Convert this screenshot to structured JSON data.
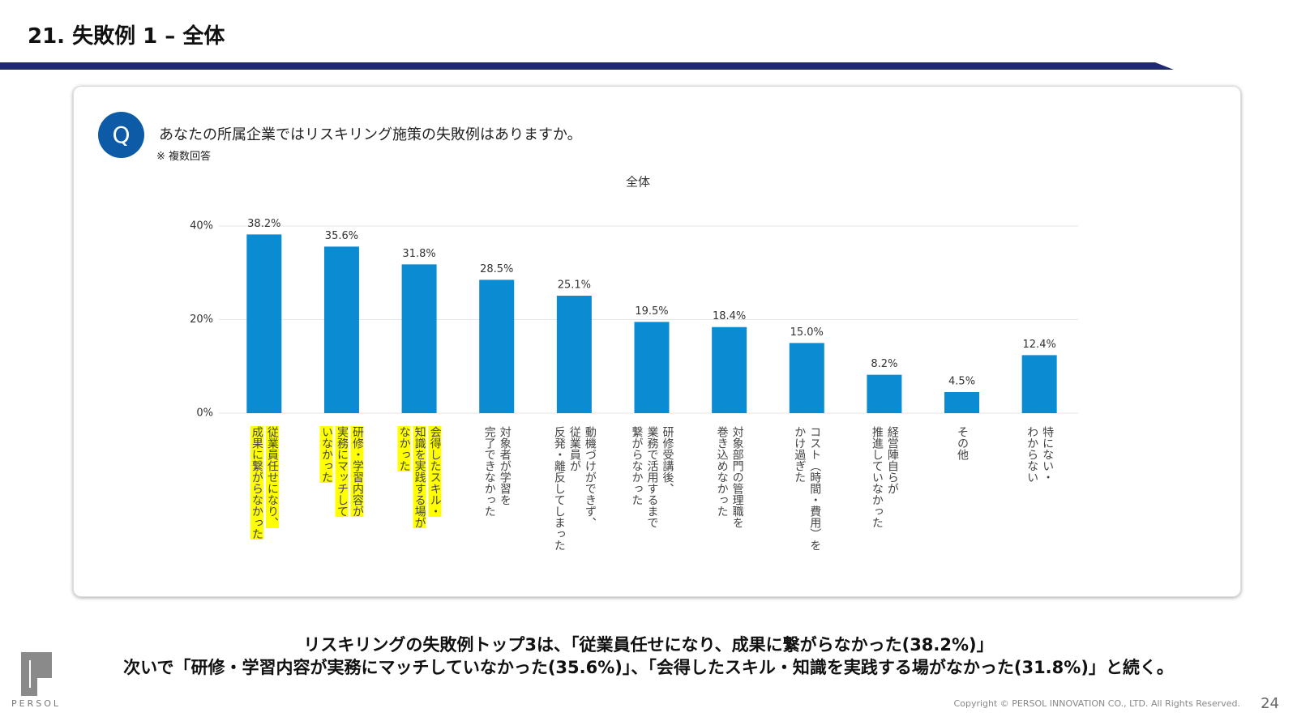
{
  "header": {
    "title": "21. 失敗例 1 – 全体"
  },
  "question": {
    "badge": "Q",
    "text": "あなたの所属企業ではリスキリング施策の失敗例はありますか。",
    "note": "※ 複数回答"
  },
  "chart_data": {
    "type": "bar",
    "title": "全体",
    "categories": [
      "従業員任せになり、\n成果に繋がらなかった",
      "研修・学習内容が\n実務にマッチして\nいなかった",
      "会得したスキル・\n知識を実践する場が\nなかった",
      "対象者が学習を\n完了できなかった",
      "動機づけができず、\n従業員が\n反発・離反してしまった",
      "研修受講後、\n業務で活用するまで\n繋がらなかった",
      "対象部門の管理職を\n巻き込めなかった",
      "コスト（時間・費用）を\nかけ過ぎた",
      "経営陣自らが\n推進していなかった",
      "その他",
      "特にない・\nわからない"
    ],
    "values": [
      38.2,
      35.6,
      31.8,
      28.5,
      25.1,
      19.5,
      18.4,
      15.0,
      8.2,
      4.5,
      12.4
    ],
    "value_labels": [
      "38.2%",
      "35.6%",
      "31.8%",
      "28.5%",
      "25.1%",
      "19.5%",
      "18.4%",
      "15.0%",
      "8.2%",
      "4.5%",
      "12.4%"
    ],
    "highlighted": [
      true,
      true,
      true,
      false,
      false,
      false,
      false,
      false,
      false,
      false,
      false
    ],
    "highlight_color": "#ffff00",
    "color": "#0a8bd2",
    "ylim": [
      0,
      40
    ],
    "yticks": [
      {
        "value": 0,
        "label": "0%"
      },
      {
        "value": 20,
        "label": "20%"
      },
      {
        "value": 40,
        "label": "40%"
      }
    ],
    "grid": true
  },
  "summary": [
    "リスキリングの失敗例トップ3は、「従業員任せになり、成果に繋がらなかった(38.2%)」",
    "次いで「研修・学習内容が実務にマッチしていなかった(35.6%)」、「会得したスキル・知識を実践する場がなかった(31.8%)」と続く。"
  ],
  "footer": {
    "logo": "PERSOL",
    "copyright": "Copyright © PERSOL INNOVATION CO., LTD. All Rights Reserved.",
    "page": "24"
  }
}
